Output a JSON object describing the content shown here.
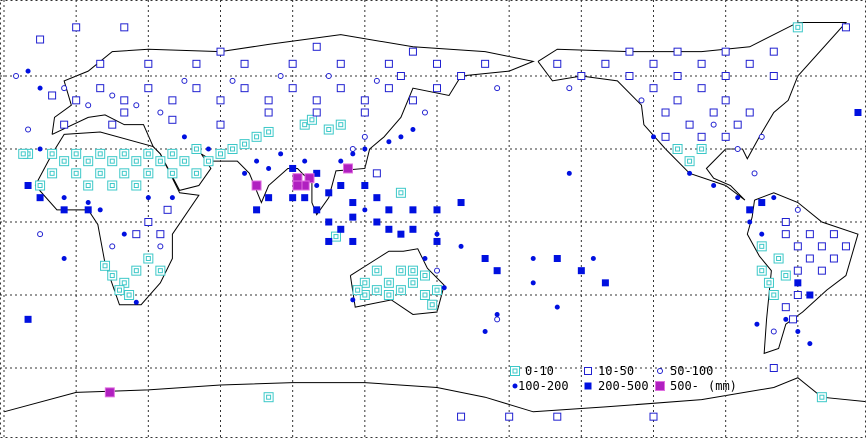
{
  "chart_data": {
    "type": "scatter",
    "projection": "equirectangular",
    "lon_range": [
      -30,
      330
    ],
    "lat_range": [
      -90,
      90
    ],
    "grid": {
      "on": true,
      "lon_step": 30,
      "lat_step": 30,
      "style": "dotted"
    },
    "legend_placement": "bottom-right",
    "unit": "(mm)",
    "categories": [
      {
        "label": "0-10",
        "symbol": "double-square",
        "color": "#3cc8c8"
      },
      {
        "label": "10-50",
        "symbol": "open-square",
        "color": "#2020d0"
      },
      {
        "label": "50-100",
        "symbol": "open-circle",
        "color": "#2020d0"
      },
      {
        "label": "100-200",
        "symbol": "filled-circle",
        "color": "#0010e0"
      },
      {
        "label": "200-500",
        "symbol": "filled-square",
        "color": "#0010e0"
      },
      {
        "label": "500-",
        "symbol": "filled-square-outlined",
        "color": "#b020c0"
      }
    ],
    "points": [
      [
        -15,
        15,
        0
      ],
      [
        -10,
        20,
        0
      ],
      [
        -5,
        25,
        0
      ],
      [
        0,
        20,
        0
      ],
      [
        5,
        25,
        0
      ],
      [
        10,
        20,
        0
      ],
      [
        15,
        25,
        0
      ],
      [
        20,
        20,
        0
      ],
      [
        25,
        25,
        0
      ],
      [
        30,
        20,
        0
      ],
      [
        35,
        25,
        0
      ],
      [
        40,
        20,
        0
      ],
      [
        45,
        25,
        0
      ],
      [
        50,
        20,
        0
      ],
      [
        55,
        25,
        0
      ],
      [
        60,
        28,
        0
      ],
      [
        65,
        30,
        0
      ],
      [
        70,
        32,
        0
      ],
      [
        75,
        35,
        0
      ],
      [
        80,
        37,
        0
      ],
      [
        -10,
        28,
        0
      ],
      [
        0,
        28,
        0
      ],
      [
        10,
        28,
        0
      ],
      [
        20,
        28,
        0
      ],
      [
        30,
        28,
        0
      ],
      [
        40,
        28,
        0
      ],
      [
        50,
        30,
        0
      ],
      [
        5,
        15,
        0
      ],
      [
        15,
        15,
        0
      ],
      [
        25,
        15,
        0
      ],
      [
        -20,
        28,
        0
      ],
      [
        -22,
        28,
        0
      ],
      [
        15,
        -22,
        0
      ],
      [
        20,
        -25,
        0
      ],
      [
        25,
        -20,
        0
      ],
      [
        18,
        -28,
        0
      ],
      [
        22,
        -30,
        0
      ],
      [
        30,
        -15,
        0
      ],
      [
        35,
        -20,
        0
      ],
      [
        12,
        -18,
        0
      ],
      [
        120,
        -25,
        0
      ],
      [
        125,
        -20,
        0
      ],
      [
        130,
        -25,
        0
      ],
      [
        135,
        -20,
        0
      ],
      [
        140,
        -25,
        0
      ],
      [
        145,
        -30,
        0
      ],
      [
        130,
        -30,
        0
      ],
      [
        120,
        -30,
        0
      ],
      [
        135,
        -28,
        0
      ],
      [
        140,
        -20,
        0
      ],
      [
        125,
        -28,
        0
      ],
      [
        145,
        -22,
        0
      ],
      [
        117,
        -28,
        0
      ],
      [
        148,
        -34,
        0
      ],
      [
        150,
        -28,
        0
      ],
      [
        105,
        38,
        0
      ],
      [
        110,
        40,
        0
      ],
      [
        95,
        40,
        0
      ],
      [
        98,
        42,
        0
      ],
      [
        135,
        12,
        0
      ],
      [
        108,
        -6,
        0
      ],
      [
        250,
        30,
        0
      ],
      [
        255,
        25,
        0
      ],
      [
        260,
        30,
        0
      ],
      [
        285,
        -20,
        0
      ],
      [
        288,
        -25,
        0
      ],
      [
        290,
        -30,
        0
      ],
      [
        285,
        -10,
        0
      ],
      [
        292,
        -15,
        0
      ],
      [
        295,
        -22,
        0
      ],
      [
        -35,
        -76,
        0
      ],
      [
        80,
        -72,
        0
      ],
      [
        300,
        80,
        0
      ],
      [
        310,
        -72,
        0
      ],
      [
        0,
        50,
        1
      ],
      [
        10,
        55,
        1
      ],
      [
        20,
        50,
        1
      ],
      [
        30,
        55,
        1
      ],
      [
        40,
        50,
        1
      ],
      [
        50,
        55,
        1
      ],
      [
        60,
        50,
        1
      ],
      [
        70,
        55,
        1
      ],
      [
        80,
        50,
        1
      ],
      [
        90,
        55,
        1
      ],
      [
        100,
        50,
        1
      ],
      [
        110,
        55,
        1
      ],
      [
        120,
        50,
        1
      ],
      [
        130,
        55,
        1
      ],
      [
        140,
        50,
        1
      ],
      [
        150,
        55,
        1
      ],
      [
        160,
        60,
        1
      ],
      [
        170,
        65,
        1
      ],
      [
        10,
        65,
        1
      ],
      [
        30,
        65,
        1
      ],
      [
        50,
        65,
        1
      ],
      [
        70,
        65,
        1
      ],
      [
        90,
        65,
        1
      ],
      [
        110,
        65,
        1
      ],
      [
        130,
        65,
        1
      ],
      [
        150,
        65,
        1
      ],
      [
        60,
        70,
        1
      ],
      [
        100,
        72,
        1
      ],
      [
        140,
        70,
        1
      ],
      [
        20,
        45,
        1
      ],
      [
        40,
        42,
        1
      ],
      [
        60,
        40,
        1
      ],
      [
        80,
        45,
        1
      ],
      [
        100,
        45,
        1
      ],
      [
        120,
        45,
        1
      ],
      [
        -5,
        40,
        1
      ],
      [
        15,
        40,
        1
      ],
      [
        -10,
        52,
        1
      ],
      [
        135,
        60,
        1
      ],
      [
        200,
        65,
        1
      ],
      [
        210,
        60,
        1
      ],
      [
        220,
        65,
        1
      ],
      [
        230,
        60,
        1
      ],
      [
        240,
        65,
        1
      ],
      [
        250,
        60,
        1
      ],
      [
        260,
        65,
        1
      ],
      [
        270,
        60,
        1
      ],
      [
        280,
        65,
        1
      ],
      [
        290,
        60,
        1
      ],
      [
        240,
        55,
        1
      ],
      [
        250,
        50,
        1
      ],
      [
        260,
        55,
        1
      ],
      [
        270,
        50,
        1
      ],
      [
        245,
        45,
        1
      ],
      [
        255,
        40,
        1
      ],
      [
        265,
        45,
        1
      ],
      [
        275,
        40,
        1
      ],
      [
        280,
        45,
        1
      ],
      [
        230,
        70,
        1
      ],
      [
        250,
        70,
        1
      ],
      [
        270,
        70,
        1
      ],
      [
        290,
        70,
        1
      ],
      [
        245,
        35,
        1
      ],
      [
        260,
        35,
        1
      ],
      [
        270,
        35,
        1
      ],
      [
        295,
        -5,
        1
      ],
      [
        300,
        -10,
        1
      ],
      [
        305,
        -5,
        1
      ],
      [
        310,
        -10,
        1
      ],
      [
        315,
        -5,
        1
      ],
      [
        300,
        -20,
        1
      ],
      [
        305,
        -15,
        1
      ],
      [
        310,
        -20,
        1
      ],
      [
        315,
        -15,
        1
      ],
      [
        320,
        -10,
        1
      ],
      [
        295,
        0,
        1
      ],
      [
        300,
        -30,
        1
      ],
      [
        295,
        -35,
        1
      ],
      [
        298,
        -40,
        1
      ],
      [
        35,
        -5,
        1
      ],
      [
        30,
        0,
        1
      ],
      [
        25,
        -5,
        1
      ],
      [
        38,
        5,
        1
      ],
      [
        160,
        -80,
        1
      ],
      [
        180,
        -80,
        1
      ],
      [
        200,
        -80,
        1
      ],
      [
        240,
        -80,
        1
      ],
      [
        290,
        -60,
        1
      ],
      [
        -15,
        75,
        1
      ],
      [
        0,
        80,
        1
      ],
      [
        20,
        80,
        1
      ],
      [
        320,
        80,
        1
      ],
      [
        125,
        20,
        1
      ],
      [
        5,
        48,
        2
      ],
      [
        15,
        52,
        2
      ],
      [
        25,
        48,
        2
      ],
      [
        35,
        45,
        2
      ],
      [
        45,
        58,
        2
      ],
      [
        65,
        58,
        2
      ],
      [
        85,
        60,
        2
      ],
      [
        105,
        60,
        2
      ],
      [
        125,
        58,
        2
      ],
      [
        145,
        45,
        2
      ],
      [
        175,
        55,
        2
      ],
      [
        115,
        30,
        2
      ],
      [
        120,
        35,
        2
      ],
      [
        -5,
        55,
        2
      ],
      [
        -25,
        60,
        2
      ],
      [
        205,
        55,
        2
      ],
      [
        235,
        50,
        2
      ],
      [
        265,
        40,
        2
      ],
      [
        285,
        35,
        2
      ],
      [
        275,
        30,
        2
      ],
      [
        282,
        20,
        2
      ],
      [
        -20,
        38,
        2
      ],
      [
        35,
        -10,
        2
      ],
      [
        15,
        -10,
        2
      ],
      [
        300,
        5,
        2
      ],
      [
        290,
        -45,
        2
      ],
      [
        150,
        -20,
        2
      ],
      [
        175,
        -40,
        2
      ],
      [
        -15,
        -5,
        2
      ],
      [
        -15,
        30,
        3
      ],
      [
        -5,
        10,
        3
      ],
      [
        5,
        8,
        3
      ],
      [
        10,
        5,
        3
      ],
      [
        30,
        10,
        3
      ],
      [
        40,
        10,
        3
      ],
      [
        75,
        25,
        3
      ],
      [
        80,
        22,
        3
      ],
      [
        85,
        28,
        3
      ],
      [
        95,
        25,
        3
      ],
      [
        100,
        15,
        3
      ],
      [
        110,
        25,
        3
      ],
      [
        115,
        28,
        3
      ],
      [
        120,
        30,
        3
      ],
      [
        130,
        33,
        3
      ],
      [
        135,
        35,
        3
      ],
      [
        140,
        38,
        3
      ],
      [
        55,
        30,
        3
      ],
      [
        45,
        35,
        3
      ],
      [
        -15,
        55,
        3
      ],
      [
        -20,
        62,
        3
      ],
      [
        175,
        -38,
        3
      ],
      [
        170,
        -45,
        3
      ],
      [
        160,
        -10,
        3
      ],
      [
        150,
        -5,
        3
      ],
      [
        145,
        -15,
        3
      ],
      [
        115,
        -32,
        3
      ],
      [
        153,
        -27,
        3
      ],
      [
        215,
        -15,
        3
      ],
      [
        190,
        -15,
        3
      ],
      [
        240,
        35,
        3
      ],
      [
        255,
        20,
        3
      ],
      [
        265,
        15,
        3
      ],
      [
        275,
        10,
        3
      ],
      [
        280,
        0,
        3
      ],
      [
        285,
        -5,
        3
      ],
      [
        290,
        10,
        3
      ],
      [
        295,
        -40,
        3
      ],
      [
        300,
        -45,
        3
      ],
      [
        305,
        -50,
        3
      ],
      [
        283,
        -42,
        3
      ],
      [
        25,
        -33,
        3
      ],
      [
        70,
        20,
        3
      ],
      [
        205,
        20,
        3
      ],
      [
        120,
        5,
        3
      ],
      [
        -5,
        -15,
        3
      ],
      [
        190,
        -25,
        3
      ],
      [
        200,
        -35,
        3
      ],
      [
        20,
        -5,
        3
      ],
      [
        -20,
        15,
        4
      ],
      [
        -15,
        10,
        4
      ],
      [
        -5,
        5,
        4
      ],
      [
        5,
        5,
        4
      ],
      [
        75,
        15,
        4
      ],
      [
        80,
        10,
        4
      ],
      [
        90,
        22,
        4
      ],
      [
        100,
        20,
        4
      ],
      [
        105,
        12,
        4
      ],
      [
        110,
        15,
        4
      ],
      [
        115,
        8,
        4
      ],
      [
        120,
        15,
        4
      ],
      [
        100,
        5,
        4
      ],
      [
        105,
        0,
        4
      ],
      [
        110,
        -3,
        4
      ],
      [
        115,
        2,
        4
      ],
      [
        125,
        0,
        4
      ],
      [
        130,
        -3,
        4
      ],
      [
        135,
        -5,
        4
      ],
      [
        140,
        -3,
        4
      ],
      [
        150,
        -8,
        4
      ],
      [
        95,
        10,
        4
      ],
      [
        125,
        10,
        4
      ],
      [
        130,
        5,
        4
      ],
      [
        140,
        5,
        4
      ],
      [
        150,
        5,
        4
      ],
      [
        160,
        8,
        4
      ],
      [
        105,
        -8,
        4
      ],
      [
        115,
        -8,
        4
      ],
      [
        170,
        -15,
        4
      ],
      [
        175,
        -20,
        4
      ],
      [
        200,
        -15,
        4
      ],
      [
        210,
        -20,
        4
      ],
      [
        220,
        -25,
        4
      ],
      [
        280,
        5,
        4
      ],
      [
        285,
        8,
        4
      ],
      [
        300,
        -25,
        4
      ],
      [
        305,
        -30,
        4
      ],
      [
        -20,
        -40,
        4
      ],
      [
        325,
        45,
        4
      ],
      [
        75,
        5,
        4
      ],
      [
        90,
        10,
        4
      ],
      [
        75,
        15,
        5
      ],
      [
        92,
        18,
        5
      ],
      [
        97,
        18,
        5
      ],
      [
        95,
        15,
        5
      ],
      [
        92,
        15,
        5
      ],
      [
        113,
        22,
        5
      ],
      [
        14,
        -70,
        5
      ]
    ]
  }
}
